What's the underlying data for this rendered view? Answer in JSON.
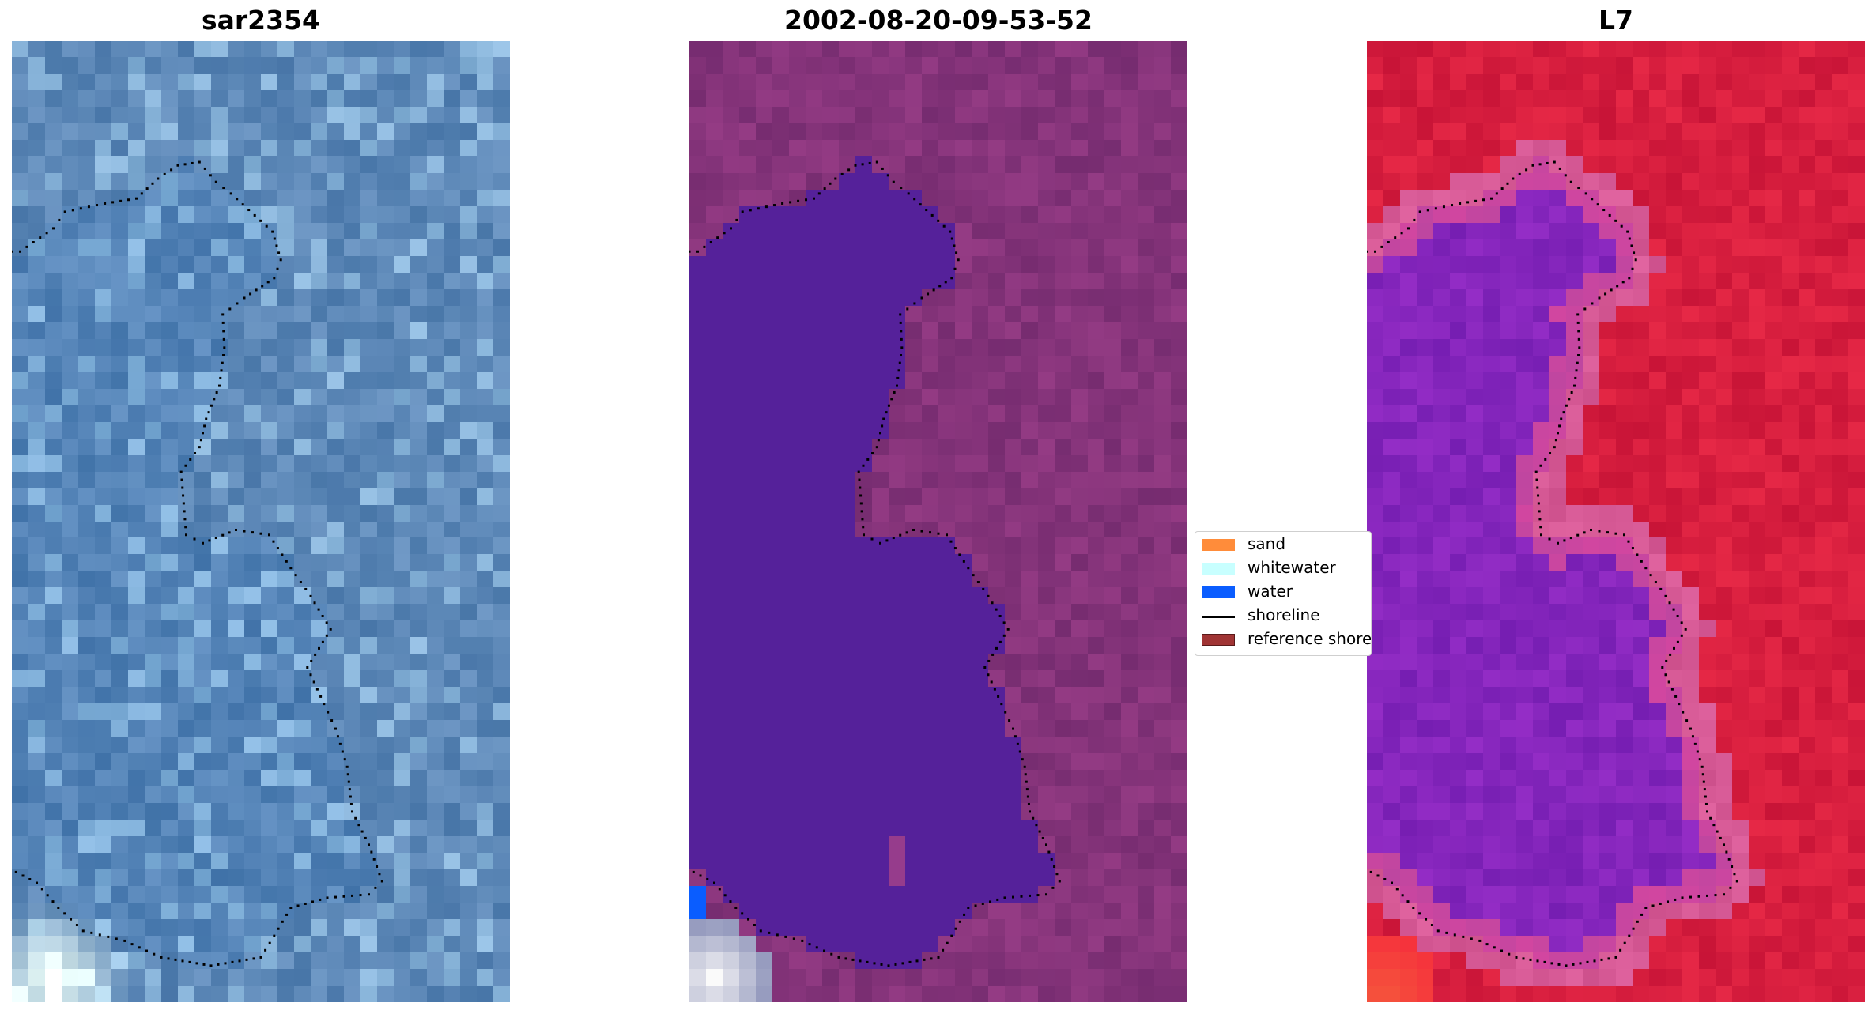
{
  "panels": [
    {
      "title": "sar2354",
      "style": "rgb"
    },
    {
      "title": "2002-08-20-09-53-52",
      "style": "classified"
    },
    {
      "title": "L7",
      "style": "mndwi"
    }
  ],
  "legend": {
    "items": [
      {
        "label": "sand",
        "color": "#ff8c3a",
        "kind": "patch"
      },
      {
        "label": "whitewater",
        "color": "#c8ffff",
        "kind": "patch"
      },
      {
        "label": "water",
        "color": "#0a5dff",
        "kind": "patch"
      },
      {
        "label": "shoreline",
        "color": "#000000",
        "kind": "line"
      },
      {
        "label": "reference shoreline",
        "color": "#a03434",
        "kind": "patch"
      }
    ]
  }
}
